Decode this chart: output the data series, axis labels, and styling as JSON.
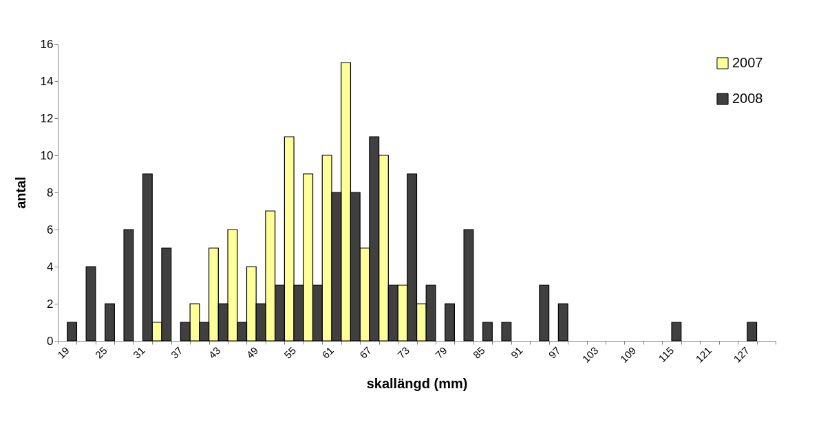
{
  "chart_data": {
    "type": "bar",
    "xlabel": "skallängd (mm)",
    "ylabel": "antal",
    "categories": [
      "19",
      null,
      "25",
      null,
      "31",
      null,
      "37",
      null,
      "43",
      null,
      "49",
      null,
      "55",
      null,
      "61",
      null,
      "67",
      null,
      "73",
      null,
      "79",
      null,
      "85",
      null,
      "91",
      null,
      "97",
      null,
      "103",
      null,
      "109",
      null,
      "115",
      null,
      "121",
      null,
      "127",
      null
    ],
    "series": [
      {
        "name": "2007",
        "color": "#ffff99",
        "values": [
          null,
          null,
          null,
          null,
          null,
          1,
          null,
          2,
          5,
          6,
          4,
          7,
          11,
          9,
          10,
          15,
          5,
          10,
          3,
          2,
          null,
          null,
          null,
          null,
          null,
          null,
          null,
          null,
          null,
          null,
          null,
          null,
          null,
          null,
          null,
          null,
          null,
          null
        ]
      },
      {
        "name": "2008",
        "color": "#404040",
        "values": [
          1,
          4,
          2,
          6,
          9,
          5,
          1,
          1,
          2,
          1,
          2,
          3,
          3,
          3,
          8,
          8,
          11,
          3,
          9,
          3,
          2,
          6,
          1,
          1,
          null,
          3,
          2,
          null,
          null,
          null,
          null,
          null,
          1,
          null,
          null,
          null,
          1,
          null
        ]
      }
    ],
    "ylim": [
      0,
      16
    ],
    "yticks": [
      0,
      2,
      4,
      6,
      8,
      10,
      12,
      14,
      16
    ],
    "grid": false,
    "legend": "top right"
  }
}
